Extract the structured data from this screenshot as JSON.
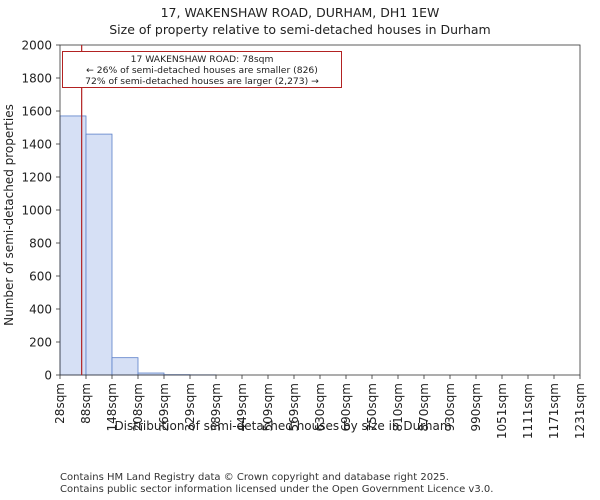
{
  "header": {
    "title_line1": "17, WAKENSHAW ROAD, DURHAM, DH1 1EW",
    "title_line2": "Size of property relative to semi-detached houses in Durham"
  },
  "chart_data": {
    "type": "bar",
    "title": "Size of property relative to semi-detached houses in Durham",
    "xlabel": "Distribution of semi-detached houses by size in Durham",
    "ylabel": "Number of semi-detached properties",
    "categories": [
      "28sqm",
      "88sqm",
      "148sqm",
      "208sqm",
      "269sqm",
      "329sqm",
      "389sqm",
      "449sqm",
      "509sqm",
      "569sqm",
      "630sqm",
      "690sqm",
      "750sqm",
      "810sqm",
      "870sqm",
      "930sqm",
      "990sqm",
      "1051sqm",
      "1111sqm",
      "1171sqm",
      "1231sqm"
    ],
    "values": [
      1570,
      1460,
      105,
      12,
      2,
      1,
      0,
      0,
      0,
      0,
      0,
      0,
      0,
      0,
      0,
      0,
      0,
      0,
      0,
      0,
      0
    ],
    "ylim": [
      0,
      2000
    ],
    "yticks": [
      0,
      200,
      400,
      600,
      800,
      1000,
      1200,
      1400,
      1600,
      1800,
      2000
    ],
    "marker_value_sqm": 78,
    "colors": {
      "bar_fill": "#d6e0f5",
      "bar_edge": "#5b7fc9",
      "marker": "#b22222"
    }
  },
  "annotation": {
    "line1": "17 WAKENSHAW ROAD: 78sqm",
    "line2": "← 26% of semi-detached houses are smaller (826)",
    "line3": "72% of semi-detached houses are larger (2,273) →"
  },
  "footer": {
    "line1": "Contains HM Land Registry data © Crown copyright and database right 2025.",
    "line2": "Contains public sector information licensed under the Open Government Licence v3.0."
  }
}
